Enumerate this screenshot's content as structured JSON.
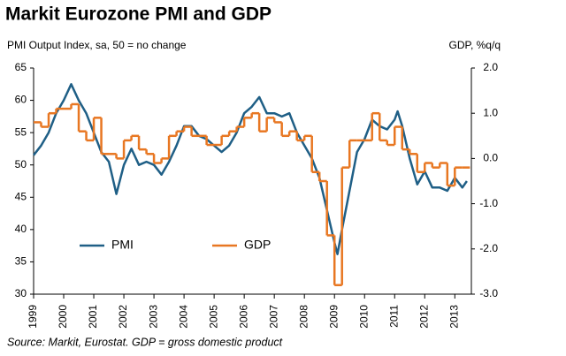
{
  "chart_data": {
    "type": "line",
    "title": "Markit Eurozone PMI and GDP",
    "y_label": "PMI Output Index, sa, 50 = no change",
    "y2_label": "GDP, %q/q",
    "source": "Source: Markit, Eurostat. GDP = gross domestic product",
    "xlim": [
      1999,
      2013.55
    ],
    "xticks": [
      1999,
      2000,
      2001,
      2002,
      2003,
      2004,
      2005,
      2006,
      2007,
      2008,
      2009,
      2010,
      2011,
      2012,
      2013
    ],
    "ylim": [
      30,
      65
    ],
    "yticks": [
      30,
      35,
      40,
      45,
      50,
      55,
      60,
      65
    ],
    "y2lim": [
      -3,
      2
    ],
    "y2ticks": [
      {
        "value": 2,
        "label": "2.0"
      },
      {
        "value": 1,
        "label": "1.0"
      },
      {
        "value": 0,
        "label": "0.0"
      },
      {
        "value": -1,
        "label": "-1.0"
      },
      {
        "value": -2,
        "label": "-2.0"
      },
      {
        "value": -3,
        "label": "-3.0"
      }
    ],
    "grid": false,
    "series": [
      {
        "name": "PMI",
        "color": "#1f5f86",
        "step": false,
        "x": [
          1999,
          1999.25,
          1999.5,
          1999.75,
          2000,
          2000.25,
          2000.5,
          2000.75,
          2001,
          2001.25,
          2001.5,
          2001.75,
          2002,
          2002.25,
          2002.5,
          2002.75,
          2003,
          2003.25,
          2003.5,
          2003.75,
          2004,
          2004.25,
          2004.5,
          2004.75,
          2005,
          2005.25,
          2005.5,
          2005.75,
          2006,
          2006.25,
          2006.5,
          2006.75,
          2007,
          2007.25,
          2007.5,
          2007.75,
          2008,
          2008.25,
          2008.5,
          2008.75,
          2009,
          2009.1,
          2009.25,
          2009.5,
          2009.75,
          2010,
          2010.25,
          2010.5,
          2010.75,
          2011,
          2011.1,
          2011.25,
          2011.5,
          2011.75,
          2012,
          2012.25,
          2012.5,
          2012.75,
          2013,
          2013.25,
          2013.4
        ],
        "values": [
          51.5,
          53,
          55,
          58,
          60,
          62.5,
          60,
          58,
          55,
          52,
          50.5,
          45.5,
          50,
          52.5,
          50,
          50.5,
          50,
          48.5,
          50.5,
          53,
          56,
          56,
          54.5,
          54,
          53,
          52,
          53,
          55,
          58,
          59,
          60.5,
          58,
          58,
          57.5,
          58,
          55,
          53,
          51,
          48,
          43,
          38,
          36.2,
          40,
          46,
          52,
          54,
          57,
          56,
          55.5,
          57,
          58.3,
          56,
          51,
          47,
          49,
          46.5,
          46.5,
          46,
          48,
          46.5,
          47.5
        ]
      },
      {
        "name": "GDP",
        "color": "#e87722",
        "axis": "y2",
        "step": true,
        "x": [
          1999,
          1999.25,
          1999.5,
          1999.75,
          2000,
          2000.25,
          2000.5,
          2000.75,
          2001,
          2001.25,
          2001.5,
          2001.75,
          2002,
          2002.25,
          2002.5,
          2002.75,
          2003,
          2003.25,
          2003.5,
          2003.75,
          2004,
          2004.25,
          2004.5,
          2004.75,
          2005,
          2005.25,
          2005.5,
          2005.75,
          2006,
          2006.25,
          2006.5,
          2006.75,
          2007,
          2007.25,
          2007.5,
          2007.75,
          2008,
          2008.25,
          2008.5,
          2008.75,
          2009,
          2009.25,
          2009.5,
          2009.75,
          2010,
          2010.25,
          2010.5,
          2010.75,
          2011,
          2011.25,
          2011.5,
          2011.75,
          2012,
          2012.25,
          2012.5,
          2012.75,
          2013,
          2013.25
        ],
        "values": [
          0.8,
          0.7,
          1.0,
          1.1,
          1.1,
          1.2,
          0.6,
          0.4,
          0.9,
          0.1,
          0.1,
          0.0,
          0.4,
          0.5,
          0.2,
          0.1,
          -0.1,
          0.0,
          0.5,
          0.6,
          0.7,
          0.5,
          0.5,
          0.3,
          0.3,
          0.5,
          0.6,
          0.7,
          0.9,
          1.0,
          0.6,
          0.9,
          0.8,
          0.5,
          0.6,
          0.4,
          0.5,
          -0.3,
          -0.5,
          -1.7,
          -2.8,
          -0.2,
          0.4,
          0.4,
          0.4,
          1.0,
          0.4,
          0.3,
          0.7,
          0.2,
          0.1,
          -0.3,
          -0.1,
          -0.2,
          -0.1,
          -0.6,
          -0.2,
          -0.2
        ]
      }
    ]
  }
}
